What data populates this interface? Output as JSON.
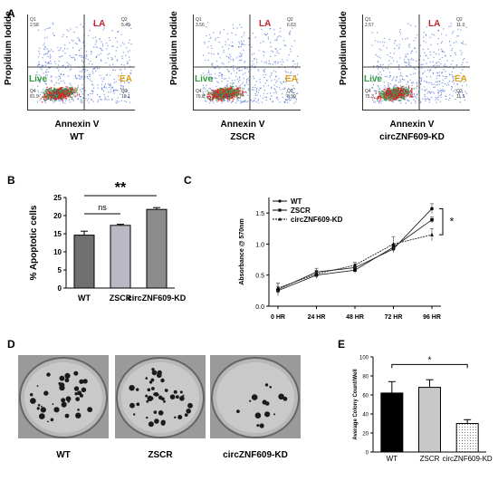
{
  "panels": {
    "A": "A",
    "B": "B",
    "C": "C",
    "D": "D",
    "E": "E"
  },
  "flow": {
    "ylabel": "Propidium Iodide",
    "xlabel": "Annexin V",
    "quadrant_labels": {
      "la": "LA",
      "ea": "EA",
      "live": "Live"
    },
    "plots": [
      {
        "name": "WT",
        "q1": "2.58",
        "q2": "5.49",
        "q3": "10.1",
        "q4": "81.9"
      },
      {
        "name": "ZSCR",
        "q1": "3.56",
        "q2": "6.63",
        "q3": "8.99",
        "q4": "79.8"
      },
      {
        "name": "circZNF609-KD",
        "q1": "2.57",
        "q2": "11.0",
        "q3": "11.1",
        "q4": "75.3"
      }
    ],
    "colors": {
      "cluster_core": "#e02020",
      "cluster_mid": "#2ea84a",
      "cluster_outer": "#2350c8"
    }
  },
  "chart_data": [
    {
      "panel": "B",
      "type": "bar",
      "categories": [
        "WT",
        "ZSCR",
        "circZNF609-KD"
      ],
      "values": [
        14.6,
        17.3,
        21.7
      ],
      "errors": [
        1.1,
        0.3,
        0.5
      ],
      "ylabel": "% Apoptotic cells",
      "ylim": [
        0,
        25
      ],
      "yticks": [
        "0",
        "5",
        "10",
        "15",
        "20",
        "25"
      ],
      "significance": [
        {
          "pair": [
            "WT",
            "ZSCR"
          ],
          "label": "ns"
        },
        {
          "pair": [
            "WT",
            "circZNF609-KD"
          ],
          "label": "**"
        }
      ],
      "bar_colors": [
        "#707070",
        "#b9b9c4",
        "#8c8c8c"
      ]
    },
    {
      "panel": "C",
      "type": "line",
      "categories": [
        "0 HR",
        "24 HR",
        "48 HR",
        "72 HR",
        "96 HR"
      ],
      "series": [
        {
          "name": "WT",
          "values": [
            0.27,
            0.55,
            0.62,
            0.92,
            1.57
          ],
          "errors": [
            0.1,
            0.06,
            0.06,
            0.06,
            0.08
          ]
        },
        {
          "name": "ZSCR",
          "values": [
            0.25,
            0.5,
            0.58,
            0.95,
            1.39
          ],
          "errors": [
            0.06,
            0.05,
            0.05,
            0.05,
            0.05
          ]
        },
        {
          "name": "circZNF609-KD",
          "values": [
            0.29,
            0.52,
            0.66,
            1.0,
            1.15
          ],
          "errors": [
            0.08,
            0.06,
            0.05,
            0.12,
            0.1
          ]
        }
      ],
      "ylabel": "Absorbance @ 570nm",
      "ylim": [
        0,
        1.75
      ],
      "yticks": [
        "0.0",
        "0.5",
        "1.0",
        "1.5"
      ],
      "significance": "*",
      "legend": "top-left"
    },
    {
      "panel": "E",
      "type": "bar",
      "categories": [
        "WT",
        "ZSCR",
        "circZNF609-KD"
      ],
      "values": [
        62,
        68,
        30
      ],
      "errors": [
        12,
        8,
        4
      ],
      "ylabel": "Average Colony Count/Well",
      "ylim": [
        0,
        100
      ],
      "yticks": [
        "0",
        "20",
        "40",
        "60",
        "80",
        "100"
      ],
      "significance": [
        {
          "pair": [
            "WT",
            "circZNF609-KD"
          ],
          "label": "*"
        }
      ],
      "bar_colors": [
        "#000000",
        "#c8c8c8",
        "#e8e8e8"
      ]
    }
  ],
  "dishes": {
    "labels": [
      "WT",
      "ZSCR",
      "circZNF609-KD"
    ]
  }
}
